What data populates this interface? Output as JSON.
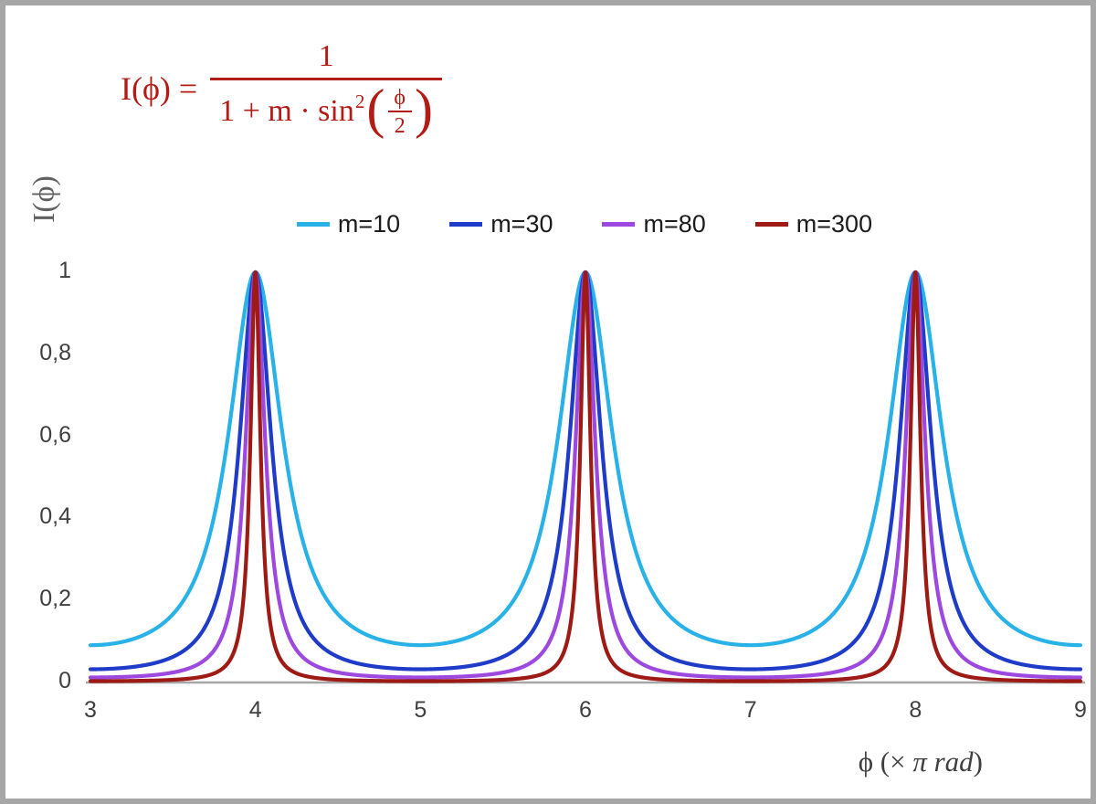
{
  "chart_data": {
    "type": "line",
    "function": "I(phi) = 1 / (1 + m * sin^2(phi/2))",
    "x_variable": "phi, in units of pi rad",
    "xlabel": "ϕ  (× π rad)",
    "ylabel": "I(ϕ)",
    "xlim": [
      3,
      9
    ],
    "ylim": [
      0,
      1
    ],
    "x_ticks": [
      3,
      4,
      5,
      6,
      7,
      8,
      9
    ],
    "y_ticks": [
      {
        "label": "0",
        "value": 0
      },
      {
        "label": "0,2",
        "value": 0.2
      },
      {
        "label": "0,4",
        "value": 0.4
      },
      {
        "label": "0,6",
        "value": 0.6
      },
      {
        "label": "0,8",
        "value": 0.8
      },
      {
        "label": "1",
        "value": 1
      }
    ],
    "grid": false,
    "legend_position": "top-center",
    "peaks_at_x": [
      4,
      6,
      8
    ],
    "peak_value": 1,
    "sample_step": 0.0025,
    "series": [
      {
        "name": "m=10",
        "m": 10,
        "color": "#29b2e8"
      },
      {
        "name": "m=30",
        "m": 30,
        "color": "#1e3cc8"
      },
      {
        "name": "m=80",
        "m": 80,
        "color": "#9d49e0"
      },
      {
        "name": "m=300",
        "m": 300,
        "color": "#9e1a15"
      }
    ]
  },
  "formula": {
    "lhs": "I(ϕ) =",
    "numerator": "1",
    "den_pre": "1 + m · sin",
    "den_sup": "2",
    "lparen": "(",
    "inner_num": "ϕ",
    "inner_den": "2",
    "rparen": ")",
    "color": "#b21b16"
  },
  "axes": {
    "ylabel": "I(ϕ)",
    "xlabel_prefix": "ϕ  (× ",
    "xlabel_italic": "π rad",
    "xlabel_suffix": ")"
  },
  "colors": {
    "frame": "#a6a6a6",
    "axis_line": "#a6a6a6",
    "tick_text": "#3f3f3f",
    "legend_text": "#1c1c1c"
  }
}
